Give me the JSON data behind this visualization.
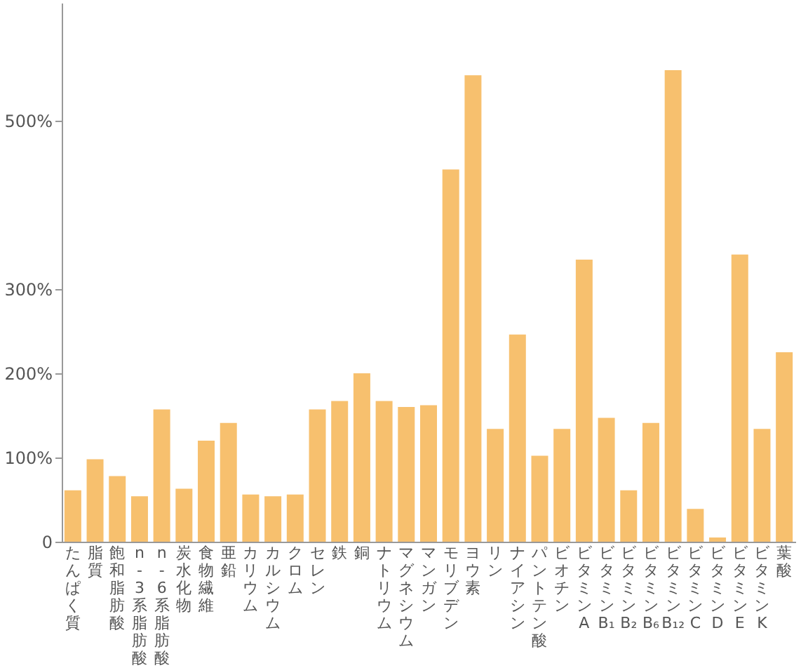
{
  "chart_data": {
    "type": "bar",
    "color": "#f7c06e",
    "categories": [
      "たんぱく質",
      "脂質",
      "飽和脂肪酸",
      "n-3系脂肪酸",
      "n-6系脂肪酸",
      "炭水化物",
      "食物繊維",
      "亜鉛",
      "カリウム",
      "カルシウム",
      "クロム",
      "セレン",
      "鉄",
      "銅",
      "ナトリウム",
      "マグネシウム",
      "マンガン",
      "モリブデン",
      "ヨウ素",
      "リン",
      "ナイアシン",
      "パントテン酸",
      "ビオチン",
      "ビタミンA",
      "ビタミンB₁",
      "ビタミンB₂",
      "ビタミンB₆",
      "ビタミンB₁₂",
      "ビタミンC",
      "ビタミンD",
      "ビタミンE",
      "ビタミンK",
      "葉酸"
    ],
    "values": [
      61,
      98,
      78,
      54,
      157,
      63,
      120,
      141,
      56,
      54,
      56,
      157,
      167,
      200,
      167,
      160,
      162,
      442,
      554,
      134,
      246,
      102,
      134,
      335,
      147,
      61,
      141,
      560,
      39,
      5,
      341,
      134,
      225
    ],
    "ylim": [
      0,
      640
    ],
    "yticks": [
      0,
      {
        "value": 100,
        "label": "100%"
      },
      {
        "value": 200,
        "label": "200%"
      },
      {
        "value": 300,
        "label": "300%"
      },
      {
        "value": 500,
        "label": "500%"
      }
    ],
    "grid": false
  }
}
